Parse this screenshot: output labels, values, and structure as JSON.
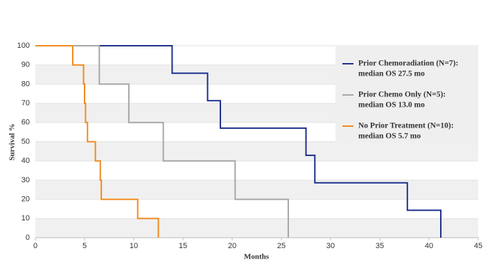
{
  "chart_data": {
    "type": "step",
    "x_label": "Months",
    "y_label": "Survival %",
    "xlim": [
      0,
      45
    ],
    "xticks": [
      0,
      5,
      10,
      15,
      20,
      25,
      30,
      35,
      40,
      45
    ],
    "ylim": [
      0,
      100
    ],
    "yticks": [
      0,
      10,
      20,
      30,
      40,
      50,
      60,
      70,
      80,
      90,
      100
    ],
    "grid": true,
    "legend": "upper-right",
    "series": [
      {
        "name": "Prior Chemoradiation   (N=7):",
        "median_label": "median OS 27.5  mo",
        "color": "#1a2e8c",
        "x": [
          0,
          13.9,
          17.5,
          18.8,
          27.5,
          28.4,
          37.8,
          41.2
        ],
        "values": [
          100,
          85.7,
          71.4,
          57.1,
          42.9,
          28.6,
          14.3,
          0
        ]
      },
      {
        "name": "Prior Chemo Only (N=5):",
        "median_label": "median OS 13.0  mo",
        "color": "#a6a6a6",
        "x": [
          0,
          6.5,
          9.5,
          13.0,
          20.3,
          25.7
        ],
        "values": [
          100,
          80,
          60,
          40,
          20,
          0
        ]
      },
      {
        "name": "No Prior Treatment (N=10):",
        "median_label": "median OS 5.7  mo",
        "color": "#f08a1c",
        "x": [
          0,
          3.8,
          4.9,
          5.0,
          5.1,
          5.3,
          6.1,
          6.6,
          6.7,
          10.4,
          12.5
        ],
        "values": [
          100,
          90,
          80,
          70,
          60,
          50,
          40,
          30,
          20,
          10,
          0
        ]
      }
    ]
  }
}
